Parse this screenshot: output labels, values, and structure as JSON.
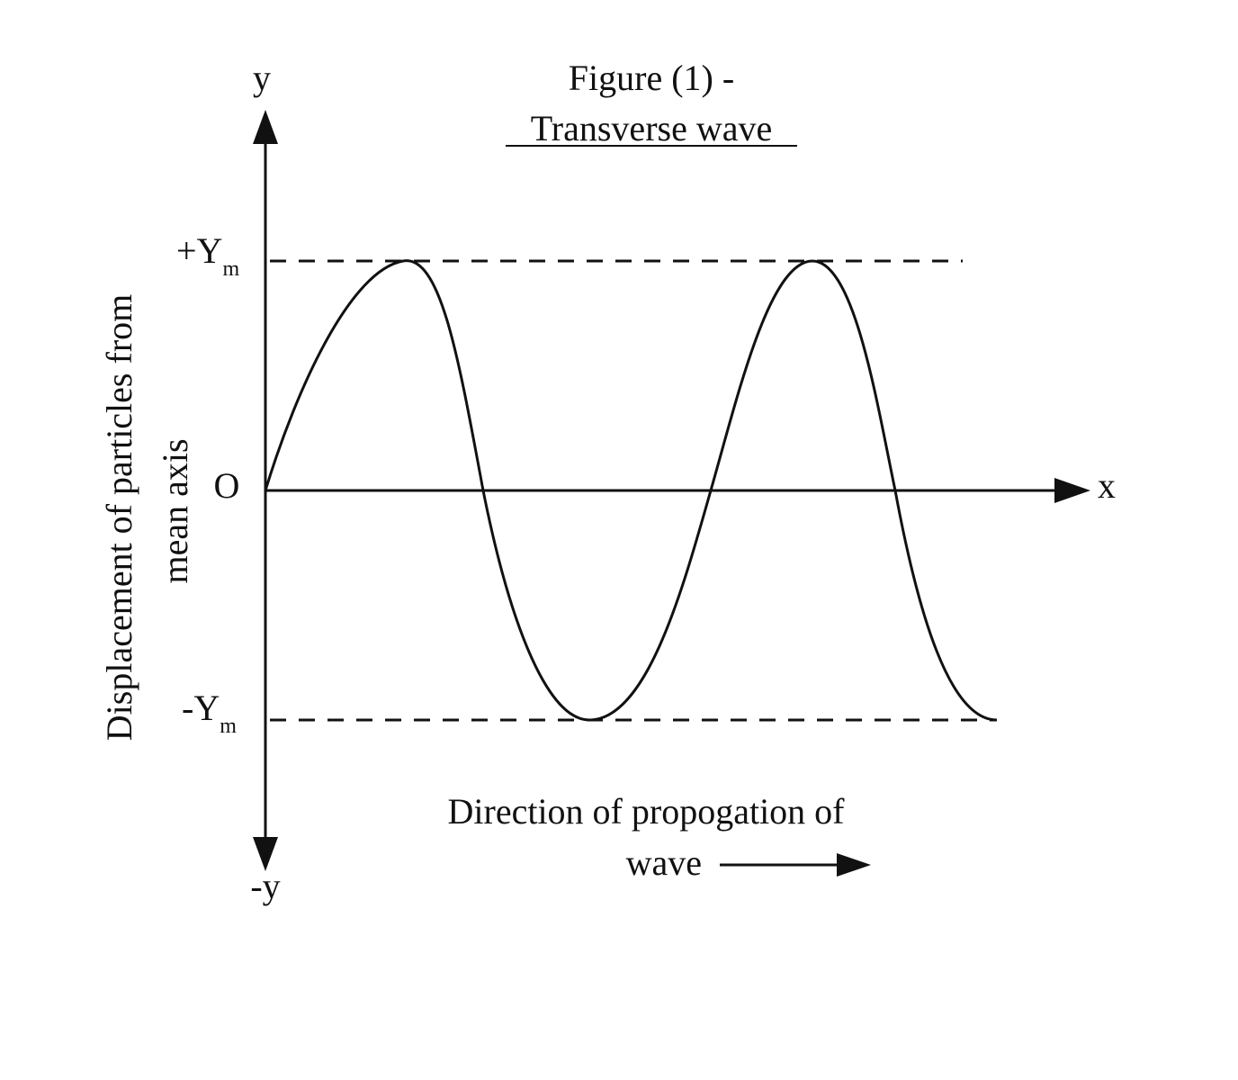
{
  "figure": {
    "title_line1": "Figure (1) -",
    "title_line2": "Transverse wave"
  },
  "axes": {
    "y_pos_label": "y",
    "y_neg_label": "-y",
    "x_label": "x",
    "origin_label": "O",
    "amp_pos_label": "+Y",
    "amp_neg_label": "-Y",
    "amp_subscript": "m",
    "y_title_line1": "Displacement of particles from",
    "y_title_line2": "mean axis"
  },
  "direction": {
    "line1": "Direction of propogation of",
    "line2": "wave"
  },
  "colors": {
    "ink": "#111111",
    "background": "#ffffff"
  }
}
